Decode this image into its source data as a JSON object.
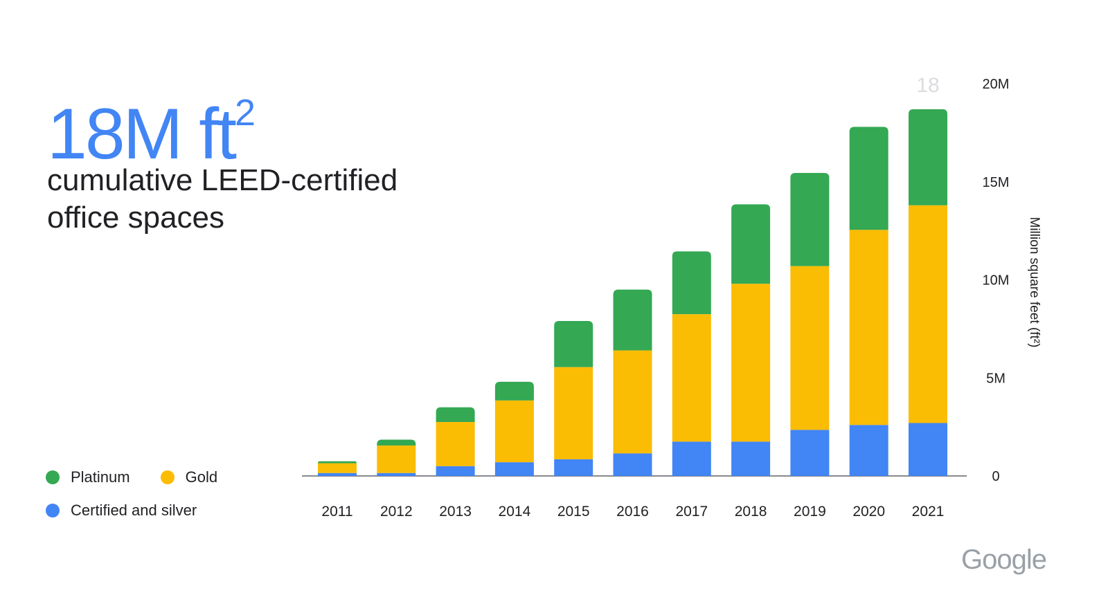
{
  "headline": {
    "value": "18M ft",
    "superscript": "2"
  },
  "subtitle": "cumulative LEED-certified office spaces",
  "legend": {
    "items": [
      {
        "label": "Platinum",
        "color": "#34a853"
      },
      {
        "label": "Gold",
        "color": "#fbbc04"
      },
      {
        "label": "Certified and silver",
        "color": "#4285f4"
      }
    ]
  },
  "logo_text": "Google",
  "chart_data": {
    "type": "bar",
    "stacked": true,
    "categories": [
      "2011",
      "2012",
      "2013",
      "2014",
      "2015",
      "2016",
      "2017",
      "2018",
      "2019",
      "2020",
      "2021"
    ],
    "series": [
      {
        "name": "Certified and silver",
        "color": "#4285f4",
        "values": [
          0.15,
          0.15,
          0.5,
          0.7,
          0.85,
          1.15,
          1.75,
          1.75,
          2.35,
          2.6,
          2.7
        ]
      },
      {
        "name": "Gold",
        "color": "#fbbc04",
        "values": [
          0.5,
          1.4,
          2.25,
          3.15,
          4.7,
          5.25,
          6.5,
          8.05,
          8.35,
          9.95,
          11.1
        ]
      },
      {
        "name": "Platinum",
        "color": "#34a853",
        "values": [
          0.1,
          0.3,
          0.75,
          0.95,
          2.35,
          3.1,
          3.2,
          4.05,
          4.75,
          5.25,
          4.9
        ]
      }
    ],
    "yaxis": {
      "label": "Million square feet (ft²)",
      "ticks": [
        {
          "value": 0,
          "label": "0"
        },
        {
          "value": 5,
          "label": "5M"
        },
        {
          "value": 10,
          "label": "10M"
        },
        {
          "value": 15,
          "label": "15M"
        },
        {
          "value": 20,
          "label": "20M"
        }
      ],
      "range": [
        0,
        20
      ],
      "position": "right"
    },
    "annotation": "18",
    "grid": false
  }
}
